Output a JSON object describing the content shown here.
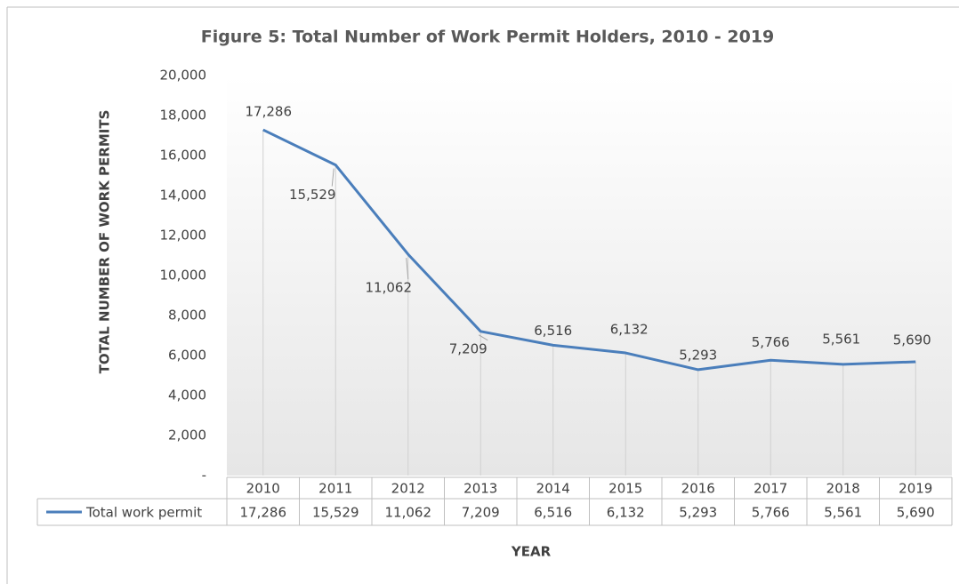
{
  "chart_data": {
    "type": "line",
    "title": "Figure 5: Total Number of Work Permit Holders, 2010 - 2019",
    "x_label": "YEAR",
    "y_label": "TOTAL NUMBER OF WORK PERMITS",
    "categories": [
      "2010",
      "2011",
      "2012",
      "2013",
      "2014",
      "2015",
      "2016",
      "2017",
      "2018",
      "2019"
    ],
    "series": [
      {
        "name": "Total work permit",
        "color": "#4a7ebb",
        "values": [
          17286,
          15529,
          11062,
          7209,
          6516,
          6132,
          5293,
          5766,
          5561,
          5690
        ],
        "value_labels": [
          "17,286",
          "15,529",
          "11,062",
          "7,209",
          "6,516",
          "6,132",
          "5,293",
          "5,766",
          "5,561",
          "5,690"
        ]
      }
    ],
    "ylim": [
      0,
      20000
    ],
    "yticks": [
      {
        "value": 0,
        "label": "-"
      },
      {
        "value": 2000,
        "label": "2,000"
      },
      {
        "value": 4000,
        "label": "4,000"
      },
      {
        "value": 6000,
        "label": "6,000"
      },
      {
        "value": 8000,
        "label": "8,000"
      },
      {
        "value": 10000,
        "label": "10,000"
      },
      {
        "value": 12000,
        "label": "12,000"
      },
      {
        "value": 14000,
        "label": "14,000"
      },
      {
        "value": 16000,
        "label": "16,000"
      },
      {
        "value": 18000,
        "label": "18,000"
      },
      {
        "value": 20000,
        "label": "20,000"
      }
    ],
    "data_table": true
  }
}
